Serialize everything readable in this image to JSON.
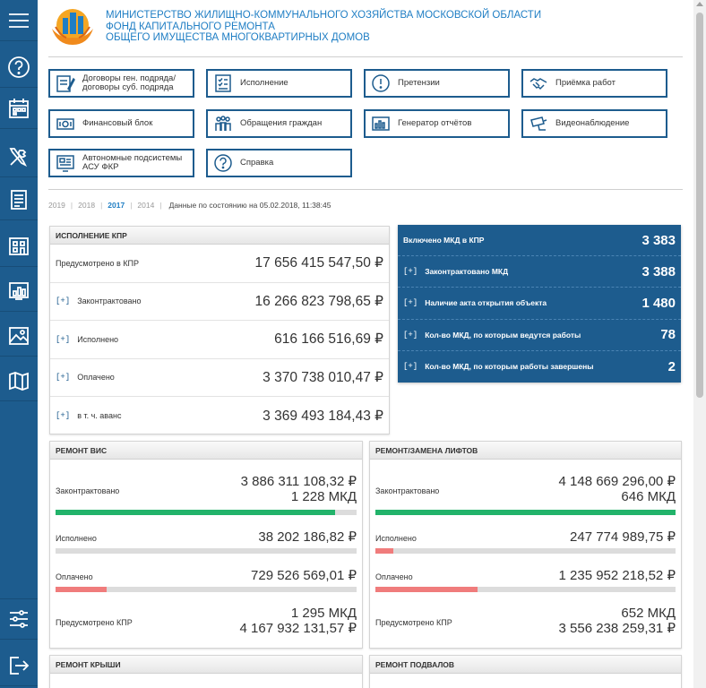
{
  "header": {
    "line1": "Министерство жилищно-коммунального хозяйства Московской области",
    "line2": "Фонд капитального ремонта",
    "line3": "общего имущества многоквартирных домов"
  },
  "sidebar": {
    "items": [
      {
        "name": "menu-icon"
      },
      {
        "name": "help-icon"
      },
      {
        "name": "calendar-icon"
      },
      {
        "name": "tools-icon"
      },
      {
        "name": "document-icon"
      },
      {
        "name": "building-icon"
      },
      {
        "name": "chart-icon"
      },
      {
        "name": "picture-icon"
      },
      {
        "name": "map-icon"
      },
      {
        "name": "settings-sliders-icon"
      },
      {
        "name": "logout-icon"
      }
    ]
  },
  "nav": {
    "contracts": "Договоры ген. подряда/ договоры суб. подряда",
    "execution": "Исполнение",
    "claims": "Претензии",
    "acceptance": "Приёмка работ",
    "finance": "Финансовый блок",
    "appeals": "Обращения граждан",
    "reports": "Генератор отчётов",
    "video": "Видеонаблюдение",
    "autonomous": "Автономные подсистемы АСУ ФКР",
    "help": "Справка"
  },
  "years": {
    "y2019": "2019",
    "y2018": "2018",
    "y2017": "2017",
    "y2014": "2014",
    "sep": "|",
    "selected": "2017",
    "status": "Данные по состоянию на 05.02.2018, 11:38:45"
  },
  "kpr": {
    "title": "Исполнение КПР",
    "plus": "[+]",
    "planned_label": "Предусмотрено в КПР",
    "planned_value": "17 656 415 547,50 ₽",
    "contracted_label": "Законтрактовано",
    "contracted_value": "16 266 823 798,65 ₽",
    "executed_label": "Исполнено",
    "executed_value": "616 166 516,69 ₽",
    "paid_label": "Оплачено",
    "paid_value": "3 370 738 010,47 ₽",
    "advance_label": "в т. ч. аванс",
    "advance_value": "3 369 493 184,43 ₽"
  },
  "mkd": {
    "plus": "[+]",
    "included_label": "Включено МКД в КПР",
    "included_value": "3 383",
    "contracted_label": "Законтрактовано МКД",
    "contracted_value": "3 388",
    "opening_label": "Наличие акта открытия объекта",
    "opening_value": "1 480",
    "inwork_label": "Кол-во МКД, по которым ведутся работы",
    "inwork_value": "78",
    "done_label": "Кол-во МКД, по которым работы завершены",
    "done_value": "2"
  },
  "vis": {
    "title": "Ремонт ВИС",
    "contracted_label": "Законтрактовано",
    "contracted_value1": "3 886 311 108,32 ₽",
    "contracted_value2": "1 228 МКД",
    "contracted_progress": 0.93,
    "executed_label": "Исполнено",
    "executed_value": "38 202 186,82 ₽",
    "executed_progress": 0.0,
    "paid_label": "Оплачено",
    "paid_value": "729 526 569,01 ₽",
    "paid_progress": 0.17,
    "planned_label": "Предусмотрено КПР",
    "planned_value1": "1 295 МКД",
    "planned_value2": "4 167 932 131,57 ₽"
  },
  "lifts": {
    "title": "Ремонт/замена лифтов",
    "contracted_label": "Законтрактовано",
    "contracted_value1": "4 148 669 296,00 ₽",
    "contracted_value2": "646 МКД",
    "contracted_progress": 1.0,
    "executed_label": "Исполнено",
    "executed_value": "247 774 989,75 ₽",
    "executed_progress": 0.06,
    "paid_label": "Оплачено",
    "paid_value": "1 235 952 218,52 ₽",
    "paid_progress": 0.34,
    "planned_label": "Предусмотрено КПР",
    "planned_value1": "652 МКД",
    "planned_value2": "3 556 238 259,31 ₽"
  },
  "roof": {
    "title": "Ремонт крыши"
  },
  "basement": {
    "title": "Ремонт подвалов"
  },
  "colors": {
    "primary": "#1d5c8e",
    "link": "#1f7ec4",
    "green": "#22b36a",
    "red": "#f07c7c",
    "track": "#dcdcdc"
  }
}
